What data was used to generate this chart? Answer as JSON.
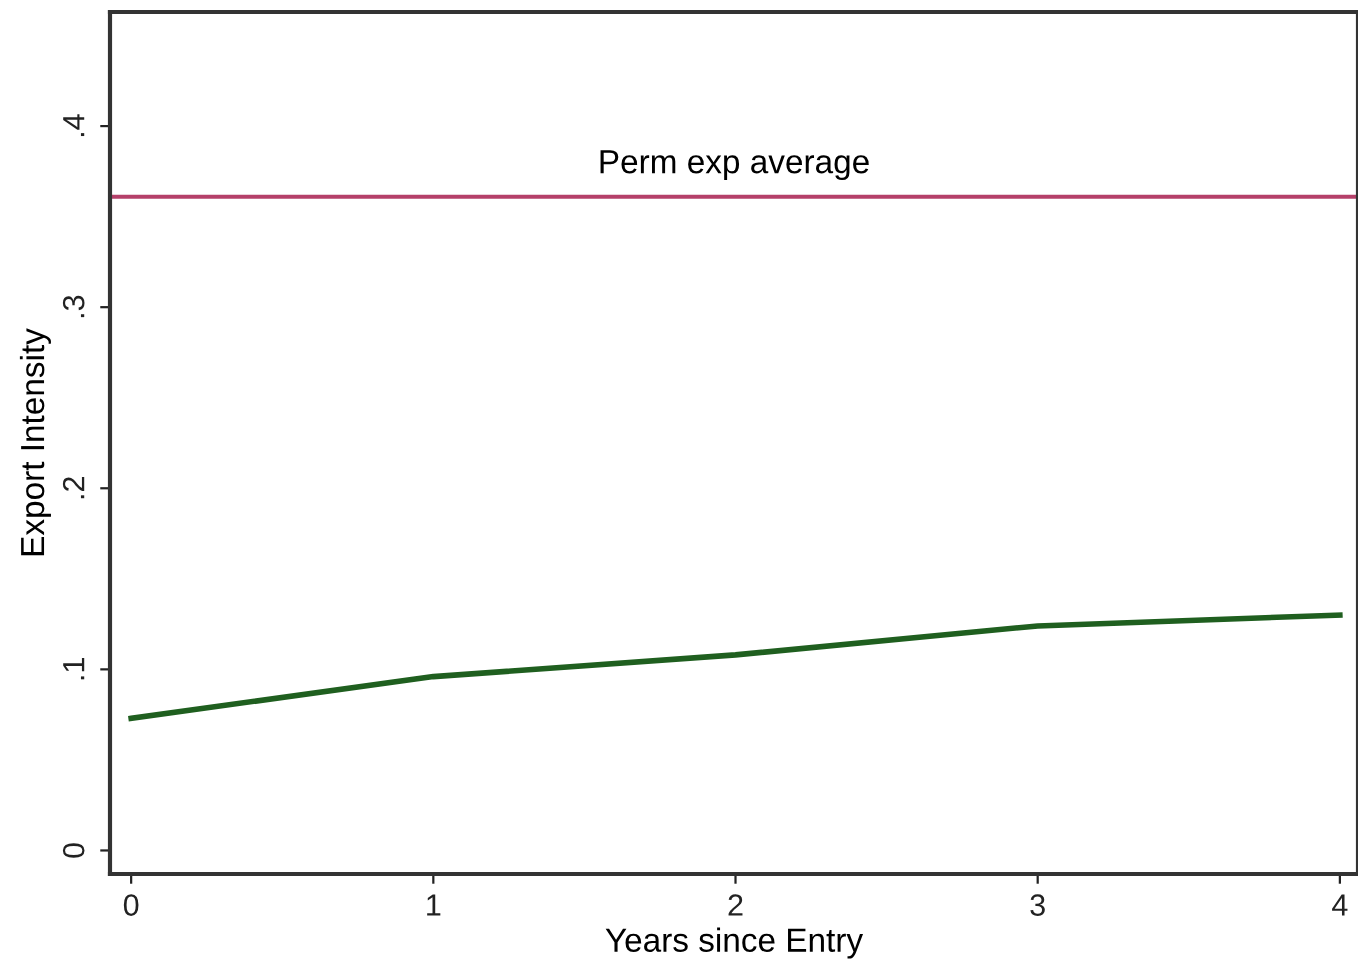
{
  "chart_data": {
    "type": "line",
    "xlabel": "Years since Entry",
    "ylabel": "Export Intensity",
    "x": [
      0,
      1,
      2,
      3,
      4
    ],
    "series": [
      {
        "color": "#1f5f1f",
        "values": [
          0.073,
          0.096,
          0.108,
          0.124,
          0.13
        ]
      }
    ],
    "xlim": [
      -0.07,
      4.06
    ],
    "xticks": [
      0,
      1,
      2,
      3,
      4
    ],
    "ylim": [
      -0.013,
      0.463
    ],
    "yticks": [
      {
        "value": 0,
        "label": "0"
      },
      {
        "value": 0.1,
        "label": ".1"
      },
      {
        "value": 0.2,
        "label": ".2"
      },
      {
        "value": 0.3,
        "label": ".3"
      },
      {
        "value": 0.4,
        "label": ".4"
      }
    ],
    "ref_lines": [
      {
        "axis": "y",
        "value": 0.361,
        "label": "Perm exp average",
        "color": "#b5406a"
      }
    ],
    "grid": false,
    "legend": false,
    "marker": "none",
    "line_style": "solid"
  }
}
